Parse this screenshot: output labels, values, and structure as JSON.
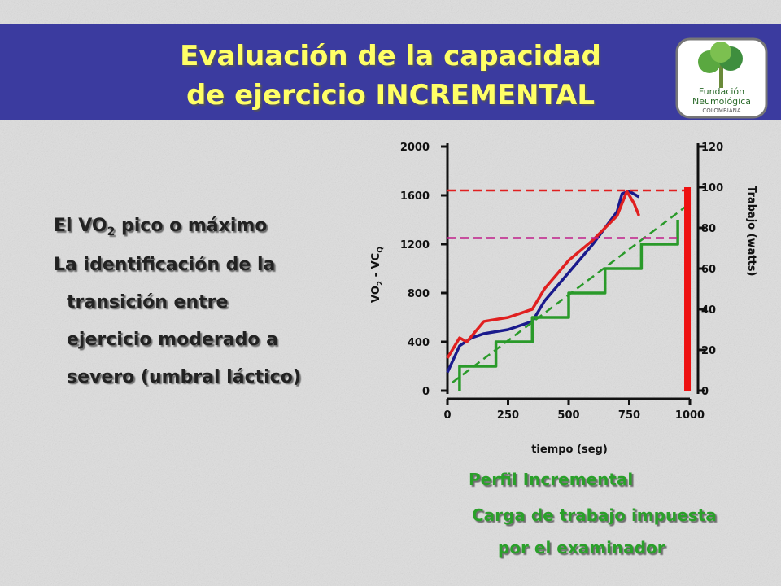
{
  "header": {
    "title_lines": [
      "Evaluación de la capacidad",
      "de ejercicio INCREMENTAL"
    ]
  },
  "logo": {
    "lines": [
      "Fundación",
      "Neumológica",
      "COLOMBIANA"
    ]
  },
  "bullets": [
    {
      "parts": [
        "El VO",
        "2",
        " pico o máximo"
      ]
    },
    {
      "lines": [
        "La identificación de la",
        "transición entre",
        "ejercicio moderado a",
        "severo (umbral láctico)"
      ]
    }
  ],
  "caption": {
    "lines": [
      "Perfil Incremental",
      "Carga de trabajo impuesta",
      "por el examinador"
    ]
  },
  "chart_data": {
    "type": "line",
    "xlabel": "tiempo (seg)",
    "ylabel_parts": [
      "VO",
      "2",
      " - VC",
      "Q"
    ],
    "y2label": "Trabajo (watts)",
    "xlim": [
      0,
      1000
    ],
    "xticks": [
      0,
      250,
      500,
      750,
      1000
    ],
    "ylim": [
      0,
      2000
    ],
    "yticks": [
      0,
      400,
      800,
      1200,
      1600,
      2000
    ],
    "y2lim": [
      0,
      120
    ],
    "y2ticks": [
      0,
      20,
      40,
      60,
      80,
      100,
      120
    ],
    "series": [
      {
        "color": "#1a1a8c",
        "x": [
          0,
          50,
          100,
          150,
          250,
          350,
          400,
          500,
          600,
          700,
          720,
          750,
          790
        ],
        "values": [
          150,
          367,
          433,
          467,
          500,
          567,
          733,
          967,
          1200,
          1467,
          1613,
          1633,
          1587
        ]
      },
      {
        "color": "#e02020",
        "x": [
          0,
          50,
          80,
          150,
          250,
          300,
          350,
          400,
          500,
          600,
          700,
          740,
          770,
          790
        ],
        "values": [
          267,
          433,
          400,
          567,
          600,
          633,
          667,
          833,
          1067,
          1233,
          1433,
          1633,
          1533,
          1433
        ]
      },
      {
        "color": "#2a9a2a",
        "axis": "y2",
        "x": [
          50,
          50,
          200,
          200,
          350,
          350,
          500,
          500,
          650,
          650,
          800,
          800,
          950,
          950
        ],
        "values": [
          0,
          12,
          12,
          24,
          24,
          36,
          36,
          48,
          48,
          60,
          60,
          72,
          72,
          84
        ]
      },
      {
        "color": "#2a9a2a",
        "axis": "y2",
        "dash": true,
        "x": [
          20,
          1000
        ],
        "values": [
          4,
          92
        ]
      },
      {
        "color": "#e02020",
        "dash": true,
        "x": [
          0,
          1000
        ],
        "values": [
          1640,
          1640
        ]
      },
      {
        "color": "#c0208a",
        "dash": true,
        "x": [
          0,
          960
        ],
        "values": [
          1250,
          1250
        ]
      }
    ],
    "bar": {
      "color": "#ee1111",
      "axis": "y2",
      "x": 990,
      "value": 100
    }
  }
}
